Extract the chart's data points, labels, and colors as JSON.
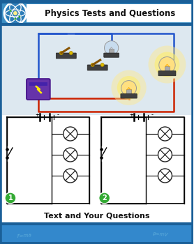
{
  "title_text": "Physics Tests and Questions",
  "footer_text": "Text and Your Questions",
  "header_bg": "#3d8fc4",
  "footer_bg": "#3388cc",
  "content_bg": "#ffffff",
  "border_color": "#2a6fa8",
  "border_color2": "#1a5f98",
  "atom_color": "#2d7db8",
  "green_dot": "#33aa33",
  "wire_red": "#cc2200",
  "wire_blue": "#2255cc",
  "bulb_off_color": "#b8d4e8",
  "bulb_on_color": "#ffe060",
  "glow_color": "#ffee88",
  "battery_color": "#6633aa",
  "circuit_bg": "#ffffff",
  "photo_bg": "#e8f0f8",
  "watermark_color": "#d8d8d8",
  "switch_dark": "#333333",
  "switch_brass": "#cc9900",
  "wire_lw": 1.5,
  "circuit_lw": 1.2
}
